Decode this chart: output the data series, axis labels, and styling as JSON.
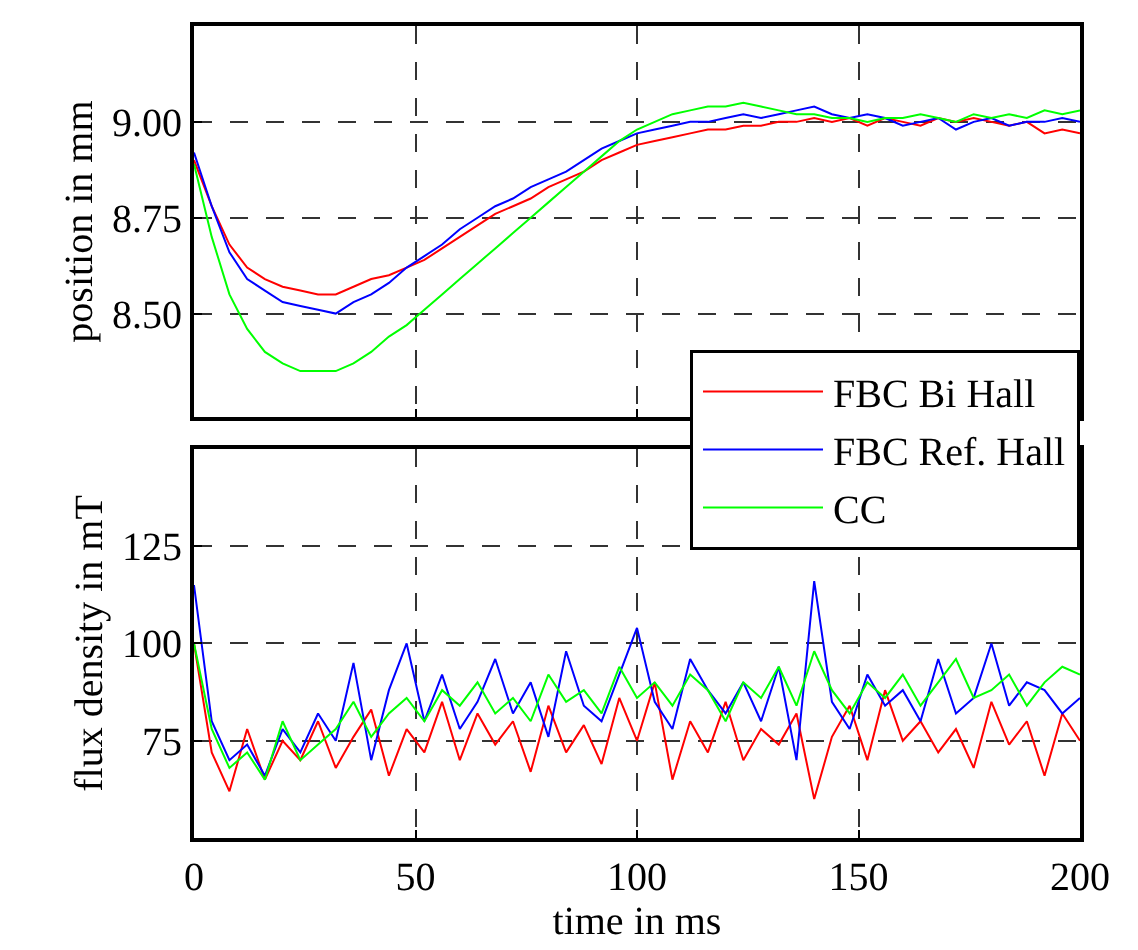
{
  "chart_data": [
    {
      "type": "line",
      "ylabel": "position in mm",
      "xlim": [
        0,
        200
      ],
      "xticks": [
        0,
        50,
        100,
        150,
        200
      ],
      "ylim": [
        8.23,
        9.25
      ],
      "yticks": [
        {
          "value": 8.5,
          "label": "8.50"
        },
        {
          "value": 8.75,
          "label": "8.75"
        },
        {
          "value": 9.0,
          "label": "9.00"
        }
      ],
      "tick_labels": "y",
      "grid": true,
      "legend": "bottom right",
      "marker": "none",
      "line_style": "solid",
      "x": [
        0,
        4,
        8,
        12,
        16,
        20,
        24,
        28,
        32,
        36,
        40,
        44,
        48,
        52,
        56,
        60,
        64,
        68,
        72,
        76,
        80,
        84,
        88,
        92,
        96,
        100,
        104,
        108,
        112,
        116,
        120,
        124,
        128,
        132,
        136,
        140,
        144,
        148,
        152,
        156,
        160,
        164,
        168,
        172,
        176,
        180,
        184,
        188,
        192,
        196,
        200
      ],
      "series": [
        {
          "name": "FBC Bi Hall",
          "color": "#ff0000",
          "values": [
            8.9,
            8.78,
            8.68,
            8.62,
            8.59,
            8.57,
            8.56,
            8.55,
            8.55,
            8.57,
            8.59,
            8.6,
            8.62,
            8.64,
            8.67,
            8.7,
            8.73,
            8.76,
            8.78,
            8.8,
            8.83,
            8.85,
            8.87,
            8.9,
            8.92,
            8.94,
            8.95,
            8.96,
            8.97,
            8.98,
            8.98,
            8.99,
            8.99,
            9.0,
            9.0,
            9.01,
            9.0,
            9.01,
            8.99,
            9.01,
            9.0,
            8.99,
            9.01,
            9.0,
            9.01,
            9.0,
            8.99,
            9.0,
            8.97,
            8.98,
            8.97
          ]
        },
        {
          "name": "FBC Ref. Hall",
          "color": "#0000ff",
          "values": [
            8.92,
            8.78,
            8.66,
            8.59,
            8.56,
            8.53,
            8.52,
            8.51,
            8.5,
            8.53,
            8.55,
            8.58,
            8.62,
            8.65,
            8.68,
            8.72,
            8.75,
            8.78,
            8.8,
            8.83,
            8.85,
            8.87,
            8.9,
            8.93,
            8.95,
            8.97,
            8.98,
            8.99,
            9.0,
            9.0,
            9.01,
            9.02,
            9.01,
            9.02,
            9.03,
            9.04,
            9.02,
            9.01,
            9.02,
            9.01,
            8.99,
            9.0,
            9.01,
            8.98,
            9.0,
            9.01,
            8.99,
            9.0,
            9.0,
            9.01,
            9.0
          ]
        },
        {
          "name": "CC",
          "color": "#00ff00",
          "values": [
            8.89,
            8.7,
            8.55,
            8.46,
            8.4,
            8.37,
            8.35,
            8.35,
            8.35,
            8.37,
            8.4,
            8.44,
            8.47,
            8.51,
            8.55,
            8.59,
            8.63,
            8.67,
            8.71,
            8.75,
            8.79,
            8.83,
            8.87,
            8.91,
            8.95,
            8.98,
            9.0,
            9.02,
            9.03,
            9.04,
            9.04,
            9.05,
            9.04,
            9.03,
            9.02,
            9.02,
            9.01,
            9.01,
            9.0,
            9.01,
            9.01,
            9.02,
            9.01,
            9.0,
            9.02,
            9.01,
            9.02,
            9.01,
            9.03,
            9.02,
            9.03
          ]
        }
      ]
    },
    {
      "type": "line",
      "xlabel": "time in ms",
      "ylabel": "flux density in mT",
      "xlim": [
        0,
        200
      ],
      "xticks": [
        0,
        50,
        100,
        150,
        200
      ],
      "ylim": [
        50,
        150
      ],
      "yticks": [
        75,
        100,
        125
      ],
      "grid": true,
      "marker": "none",
      "line_style": "solid",
      "x": [
        0,
        4,
        8,
        12,
        16,
        20,
        24,
        28,
        32,
        36,
        40,
        44,
        48,
        52,
        56,
        60,
        64,
        68,
        72,
        76,
        80,
        84,
        88,
        92,
        96,
        100,
        104,
        108,
        112,
        116,
        120,
        124,
        128,
        132,
        136,
        140,
        144,
        148,
        152,
        156,
        160,
        164,
        168,
        172,
        176,
        180,
        184,
        188,
        192,
        196,
        200
      ],
      "series": [
        {
          "name": "FBC Bi Hall",
          "color": "#ff0000",
          "values": [
            100,
            72,
            62,
            78,
            65,
            75,
            70,
            80,
            68,
            76,
            83,
            66,
            78,
            72,
            85,
            70,
            82,
            74,
            80,
            67,
            84,
            72,
            79,
            69,
            86,
            75,
            90,
            65,
            80,
            72,
            85,
            70,
            78,
            74,
            82,
            60,
            76,
            84,
            70,
            88,
            75,
            80,
            72,
            78,
            68,
            85,
            74,
            80,
            66,
            82,
            75
          ]
        },
        {
          "name": "FBC Ref. Hall",
          "color": "#0000ff",
          "values": [
            115,
            80,
            70,
            74,
            66,
            78,
            72,
            82,
            75,
            95,
            70,
            88,
            100,
            80,
            92,
            78,
            85,
            96,
            82,
            90,
            76,
            98,
            84,
            80,
            92,
            104,
            85,
            78,
            96,
            88,
            82,
            90,
            80,
            94,
            70,
            116,
            85,
            78,
            92,
            84,
            88,
            80,
            96,
            82,
            86,
            100,
            84,
            90,
            88,
            82,
            86
          ]
        },
        {
          "name": "CC",
          "color": "#00ff00",
          "values": [
            100,
            78,
            68,
            72,
            65,
            80,
            70,
            74,
            78,
            85,
            76,
            82,
            86,
            80,
            88,
            84,
            90,
            82,
            86,
            80,
            92,
            85,
            88,
            82,
            94,
            86,
            90,
            84,
            92,
            88,
            80,
            90,
            86,
            94,
            84,
            98,
            88,
            82,
            90,
            86,
            92,
            84,
            90,
            96,
            86,
            88,
            92,
            84,
            90,
            94,
            92
          ]
        }
      ]
    }
  ]
}
